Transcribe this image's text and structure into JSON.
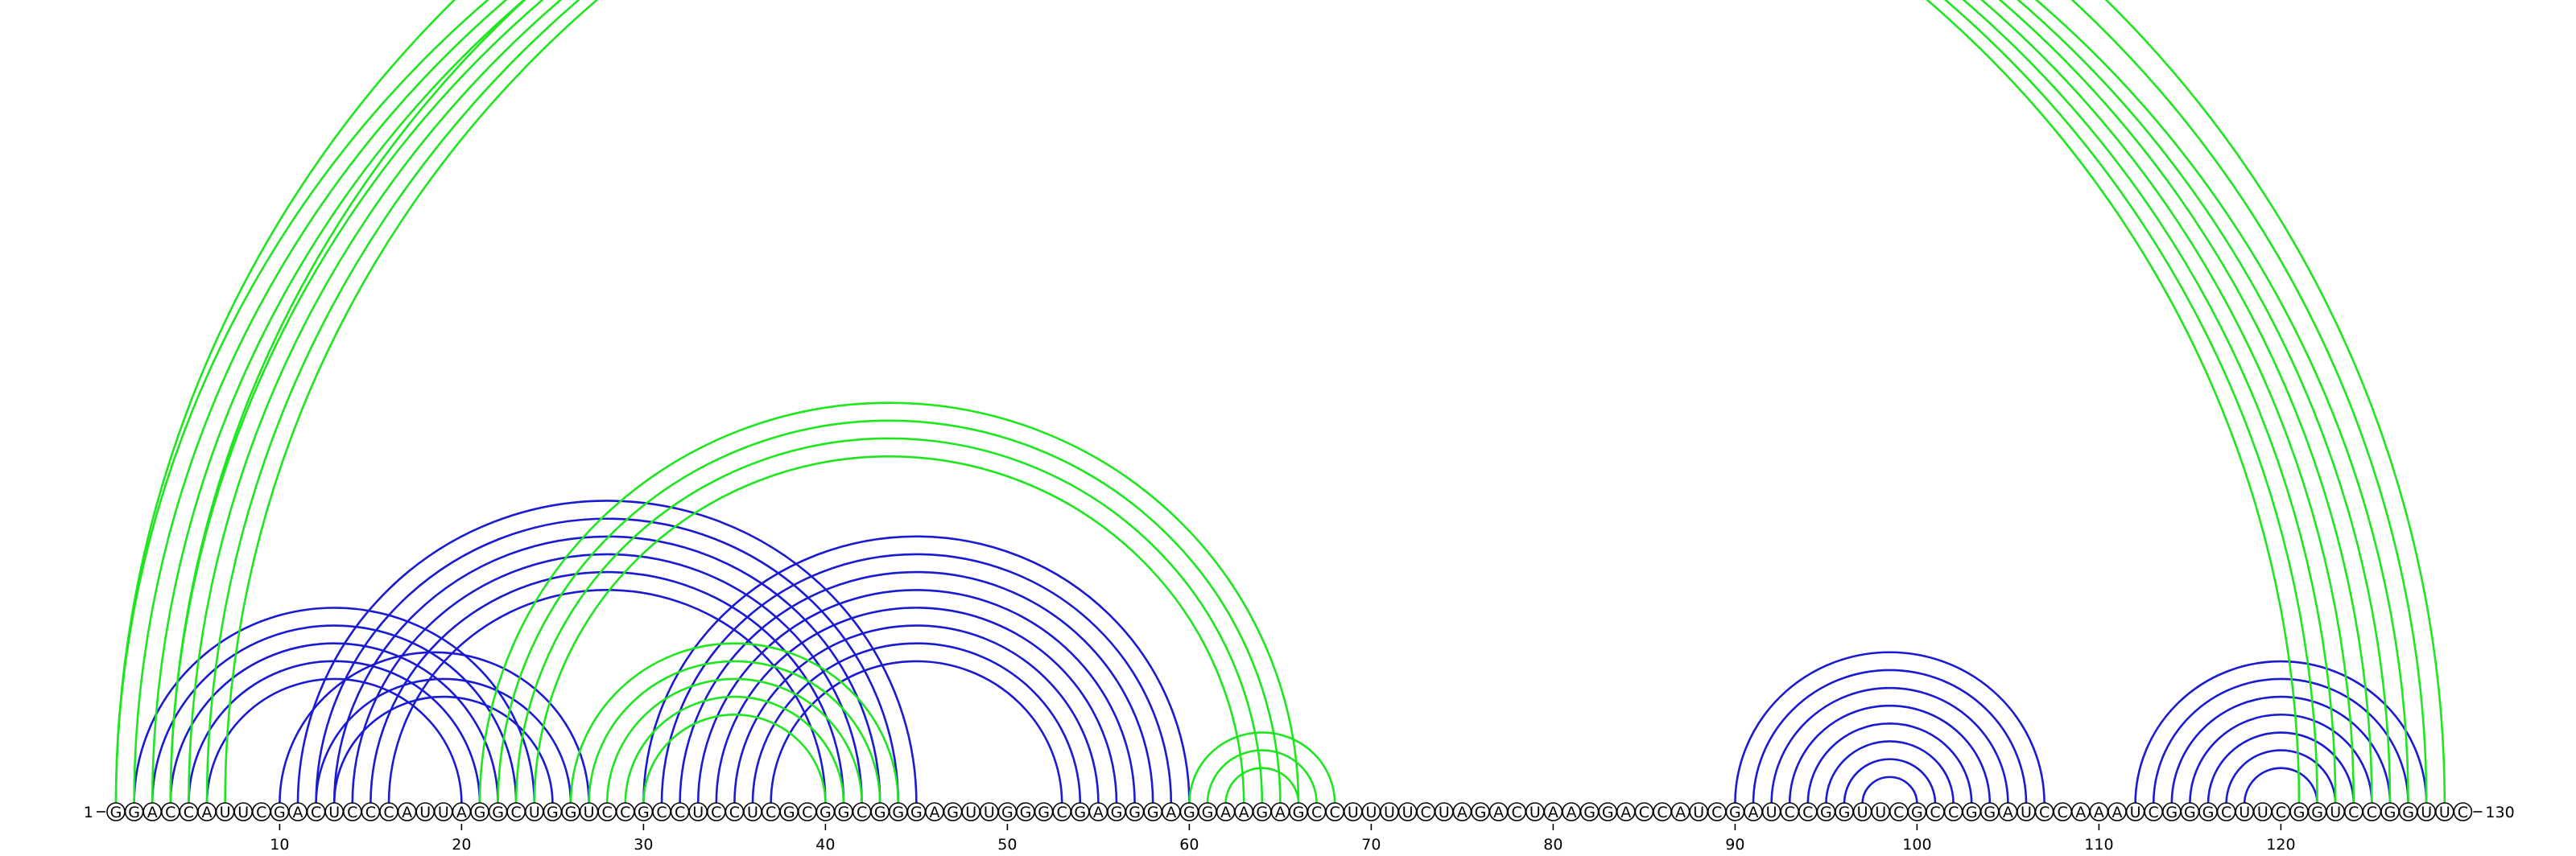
{
  "sequence": "GGACCAUUCGACUCCCAUUAGGCUGGUCCGCCUCCUCGCGGCGGGAGUUGGGCGAGGGAGGAAGAGCCUUUUCUAGACUAAGGACCAUCGAUCCGGUUCGCCGGAUCCAAAUCGGGCUUCGGUCCGGUUC",
  "labels": {
    "start": "1",
    "end": "130"
  },
  "ticks": [
    10,
    20,
    30,
    40,
    50,
    60,
    70,
    80,
    90,
    100,
    110,
    120
  ],
  "colors": {
    "blue": "#1a1ad2",
    "green": "#1ee61e"
  },
  "arcs": {
    "blue": [
      [
        2,
        24
      ],
      [
        3,
        23
      ],
      [
        4,
        22
      ],
      [
        5,
        21
      ],
      [
        6,
        20
      ],
      [
        11,
        45
      ],
      [
        12,
        44
      ],
      [
        13,
        43
      ],
      [
        14,
        42
      ],
      [
        15,
        41
      ],
      [
        16,
        40
      ],
      [
        10,
        27
      ],
      [
        12,
        26
      ],
      [
        13,
        25
      ],
      [
        30,
        60
      ],
      [
        31,
        59
      ],
      [
        32,
        58
      ],
      [
        33,
        57
      ],
      [
        34,
        56
      ],
      [
        35,
        55
      ],
      [
        36,
        54
      ],
      [
        37,
        53
      ],
      [
        90,
        107
      ],
      [
        91,
        106
      ],
      [
        92,
        105
      ],
      [
        93,
        104
      ],
      [
        94,
        103
      ],
      [
        95,
        102
      ],
      [
        96,
        101
      ],
      [
        97,
        100
      ],
      [
        112,
        128
      ],
      [
        113,
        127
      ],
      [
        114,
        126
      ],
      [
        115,
        125
      ],
      [
        116,
        124
      ],
      [
        117,
        123
      ],
      [
        118,
        122
      ]
    ],
    "green": [
      [
        1,
        121
      ],
      [
        2,
        122
      ],
      [
        3,
        123
      ],
      [
        4,
        124
      ],
      [
        5,
        125
      ],
      [
        6,
        126
      ],
      [
        7,
        127
      ],
      [
        1,
        129
      ],
      [
        4,
        128
      ],
      [
        21,
        66
      ],
      [
        22,
        65
      ],
      [
        23,
        64
      ],
      [
        24,
        63
      ],
      [
        26,
        44
      ],
      [
        27,
        43
      ],
      [
        28,
        42
      ],
      [
        29,
        41
      ],
      [
        30,
        40
      ],
      [
        60,
        68
      ],
      [
        61,
        67
      ],
      [
        62,
        66
      ]
    ]
  }
}
